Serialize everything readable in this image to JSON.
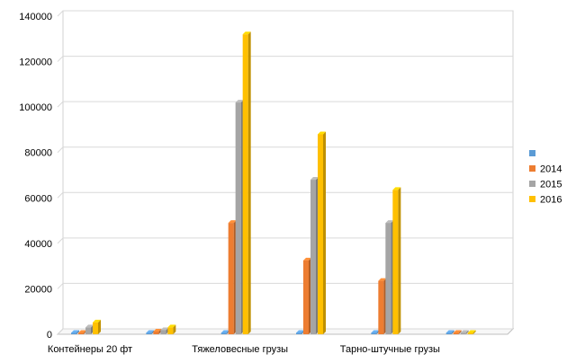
{
  "chart_data": {
    "type": "bar",
    "style": "3d-clustered-column",
    "categories": [
      "Контейнеры 20 фт",
      "",
      "Тяжеловесные грузы",
      "",
      "Тарно-штучные грузы",
      ""
    ],
    "series": [
      {
        "name": "",
        "color": "#5b9bd5",
        "values": [
          0,
          0,
          0,
          0,
          0,
          0
        ]
      },
      {
        "name": "2014",
        "color": "#ed7d31",
        "values": [
          300,
          1200,
          49000,
          32500,
          23500,
          0
        ]
      },
      {
        "name": "2015",
        "color": "#a5a5a5",
        "values": [
          3000,
          1800,
          102000,
          68000,
          49000,
          0
        ]
      },
      {
        "name": "2016",
        "color": "#ffc000",
        "values": [
          5200,
          3000,
          132000,
          88000,
          63500,
          0
        ]
      }
    ],
    "ylim": [
      0,
      140000
    ],
    "yticks": [
      "0",
      "20000",
      "40000",
      "60000",
      "80000",
      "100000",
      "120000",
      "140000"
    ],
    "grid": true,
    "legend_position": "right"
  }
}
